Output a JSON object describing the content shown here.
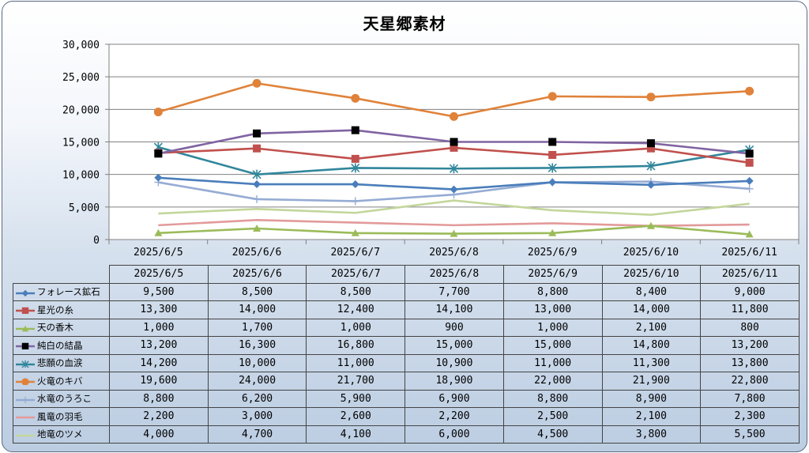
{
  "chart_data": {
    "type": "line",
    "title": "天星郷素材",
    "categories": [
      "2025/6/5",
      "2025/6/6",
      "2025/6/7",
      "2025/6/8",
      "2025/6/9",
      "2025/6/10",
      "2025/6/11"
    ],
    "ylim": [
      0,
      30000
    ],
    "yticks": [
      "30,000",
      "25,000",
      "20,000",
      "15,000",
      "10,000",
      "5,000",
      "0"
    ],
    "ytick_values": [
      30000,
      25000,
      20000,
      15000,
      10000,
      5000,
      0
    ],
    "grid": true,
    "legend": "data-table",
    "series": [
      {
        "name": "フォレース鉱石",
        "color": "#4a7ebb",
        "marker": "diamond",
        "values": [
          9500,
          8500,
          8500,
          7700,
          8800,
          8400,
          9000
        ],
        "labels": [
          "9,500",
          "8,500",
          "8,500",
          "7,700",
          "8,800",
          "8,400",
          "9,000"
        ]
      },
      {
        "name": "星光の糸",
        "color": "#c0504d",
        "marker": "square",
        "values": [
          13300,
          14000,
          12400,
          14100,
          13000,
          14000,
          11800
        ],
        "labels": [
          "13,300",
          "14,000",
          "12,400",
          "14,100",
          "13,000",
          "14,000",
          "11,800"
        ]
      },
      {
        "name": "天の香木",
        "color": "#9bbb59",
        "marker": "triangle",
        "values": [
          1000,
          1700,
          1000,
          900,
          1000,
          2100,
          800
        ],
        "labels": [
          "1,000",
          "1,700",
          "1,000",
          "900",
          "1,000",
          "2,100",
          "800"
        ]
      },
      {
        "name": "純白の結晶",
        "color": "#8064a2",
        "marker": "blacksquare",
        "values": [
          13200,
          16300,
          16800,
          15000,
          15000,
          14800,
          13200
        ],
        "labels": [
          "13,200",
          "16,300",
          "16,800",
          "15,000",
          "15,000",
          "14,800",
          "13,200"
        ]
      },
      {
        "name": "悲願の血涙",
        "color": "#31869b",
        "marker": "star",
        "values": [
          14200,
          10000,
          11000,
          10900,
          11000,
          11300,
          13800
        ],
        "labels": [
          "14,200",
          "10,000",
          "11,000",
          "10,900",
          "11,000",
          "11,300",
          "13,800"
        ]
      },
      {
        "name": "火竜のキバ",
        "color": "#e0823a",
        "marker": "circle",
        "values": [
          19600,
          24000,
          21700,
          18900,
          22000,
          21900,
          22800
        ],
        "labels": [
          "19,600",
          "24,000",
          "21,700",
          "18,900",
          "22,000",
          "21,900",
          "22,800"
        ]
      },
      {
        "name": "水竜のうろこ",
        "color": "#95acd4",
        "marker": "plus",
        "values": [
          8800,
          6200,
          5900,
          6900,
          8800,
          8900,
          7800
        ],
        "labels": [
          "8,800",
          "6,200",
          "5,900",
          "6,900",
          "8,800",
          "8,900",
          "7,800"
        ]
      },
      {
        "name": "風竜の羽毛",
        "color": "#e39a9a",
        "marker": "none",
        "values": [
          2200,
          3000,
          2600,
          2200,
          2500,
          2100,
          2300
        ],
        "labels": [
          "2,200",
          "3,000",
          "2,600",
          "2,200",
          "2,500",
          "2,100",
          "2,300"
        ]
      },
      {
        "name": "地竜のツメ",
        "color": "#c3d69b",
        "marker": "none",
        "values": [
          4000,
          4700,
          4100,
          6000,
          4500,
          3800,
          5500
        ],
        "labels": [
          "4,000",
          "4,700",
          "4,100",
          "6,000",
          "4,500",
          "3,800",
          "5,500"
        ]
      }
    ]
  }
}
